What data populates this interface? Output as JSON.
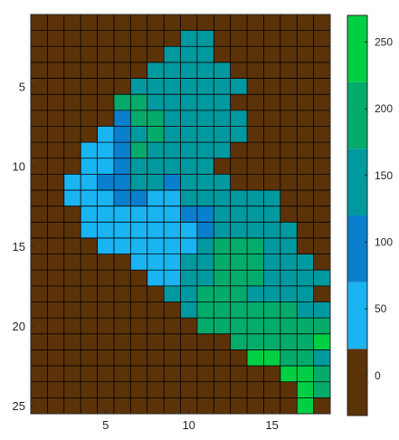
{
  "chart_data": {
    "type": "heatmap",
    "title": "",
    "xlabel": "",
    "ylabel": "",
    "x_ticks": [
      5,
      10,
      15
    ],
    "y_ticks": [
      5,
      10,
      15,
      20,
      25
    ],
    "x_range": [
      0.5,
      18.5
    ],
    "y_range": [
      0.5,
      25.5
    ],
    "y_reversed": true,
    "grid": true,
    "colorbar": {
      "ticks": [
        0,
        50,
        100,
        150,
        200,
        250
      ],
      "range": [
        -30,
        270
      ],
      "bins": [
        {
          "from": -30,
          "to": 20,
          "color": "#5c3209"
        },
        {
          "from": 20,
          "to": 70,
          "color": "#1ab4f2"
        },
        {
          "from": 70,
          "to": 120,
          "color": "#0a7fcd"
        },
        {
          "from": 120,
          "to": 170,
          "color": "#00999f"
        },
        {
          "from": 170,
          "to": 220,
          "color": "#05ab6b"
        },
        {
          "from": 220,
          "to": 270,
          "color": "#00cf44"
        }
      ]
    },
    "legend_position": "right",
    "value_codes": {
      "0": 0,
      "1": 50,
      "2": 100,
      "3": 150,
      "4": 200,
      "5": 250
    },
    "rows": [
      "000000000000000000",
      "000000000330000000",
      "000000003330000000",
      "000000033333000000",
      "000000333333300000",
      "000004433333000000",
      "000002443333300000",
      "000012343333300000",
      "000112433333000000",
      "000112333330000000",
      "001122332333000000",
      "001112211333333000",
      "000111111223333000",
      "000111111123333300",
      "000011111134443300",
      "000000111334443330",
      "000000011334443333",
      "000000003344433330",
      "000000000344444433",
      "000000000044444444",
      "000000000000444445",
      "000000000000055443",
      "000000000000000554",
      "000000000000000054",
      "000000000000000050"
    ]
  }
}
